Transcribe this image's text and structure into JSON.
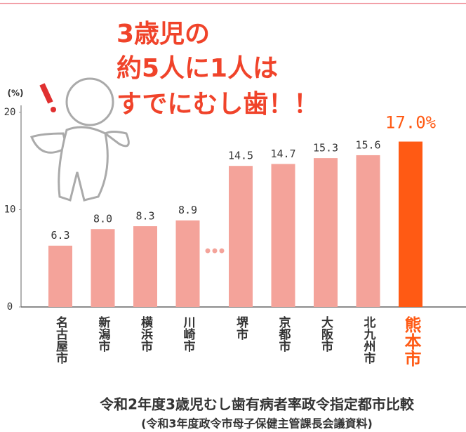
{
  "chart_data": {
    "type": "bar",
    "annotation": [
      "3歳児の",
      "約5人に1人は",
      "すでにむし歯！！"
    ],
    "y_axis_label": "(%)",
    "categories": [
      "名古屋市",
      "新潟市",
      "横浜市",
      "川崎市",
      "堺市",
      "京都市",
      "大阪市",
      "北九州市",
      "熊本市"
    ],
    "values": [
      6.3,
      8.0,
      8.3,
      8.9,
      14.5,
      14.7,
      15.3,
      15.6,
      17.0
    ],
    "value_labels": [
      "6.3",
      "8.0",
      "8.3",
      "8.9",
      "14.5",
      "14.7",
      "15.3",
      "15.6",
      "17.0%"
    ],
    "colors": [
      "#f4a39a",
      "#f4a39a",
      "#f4a39a",
      "#f4a39a",
      "#f4a39a",
      "#f4a39a",
      "#f4a39a",
      "#f4a39a",
      "#ff5a14"
    ],
    "label_colors": [
      "#333333",
      "#333333",
      "#333333",
      "#333333",
      "#333333",
      "#333333",
      "#333333",
      "#333333",
      "#ff5a14"
    ],
    "ylim": [
      0,
      20
    ],
    "yticks": [
      0,
      10,
      20
    ],
    "footnote": [
      "令和2年度3歳児むし歯有病者率政令指定都市比較",
      "(令和3年度政令市母子保健主管課長会議資料)"
    ]
  }
}
